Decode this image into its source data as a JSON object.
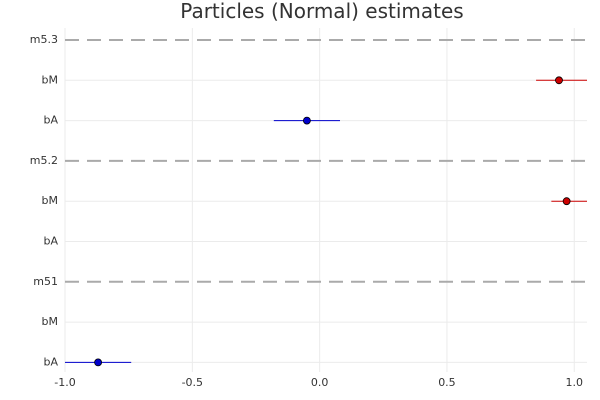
{
  "chart_data": {
    "type": "scatter",
    "title": "Particles (Normal) estimates",
    "xlabel": "",
    "ylabel": "",
    "xlim": [
      -1.0,
      1.05
    ],
    "x_ticks": [
      -1.0,
      -0.5,
      0.0,
      0.5,
      1.0
    ],
    "x_tick_labels": [
      "-1.0",
      "-0.5",
      "0.0",
      "0.5",
      "1.0"
    ],
    "grid": true,
    "legend": "none",
    "rows": [
      {
        "label": "m5.3",
        "kind": "separator"
      },
      {
        "label": "bM",
        "kind": "estimate",
        "mean": 0.94,
        "low": 0.85,
        "high": 1.05,
        "color": "#cc0000"
      },
      {
        "label": "bA",
        "kind": "estimate",
        "mean": -0.05,
        "low": -0.18,
        "high": 0.08,
        "color": "#0000cc"
      },
      {
        "label": "m5.2",
        "kind": "separator"
      },
      {
        "label": "bM",
        "kind": "estimate",
        "mean": 0.97,
        "low": 0.91,
        "high": 1.05,
        "color": "#cc0000"
      },
      {
        "label": "bA",
        "kind": "empty"
      },
      {
        "label": "m51",
        "kind": "separator"
      },
      {
        "label": "bM",
        "kind": "empty"
      },
      {
        "label": "bA",
        "kind": "estimate",
        "mean": -0.87,
        "low": -1.0,
        "high": -0.74,
        "color": "#0000cc"
      }
    ]
  }
}
